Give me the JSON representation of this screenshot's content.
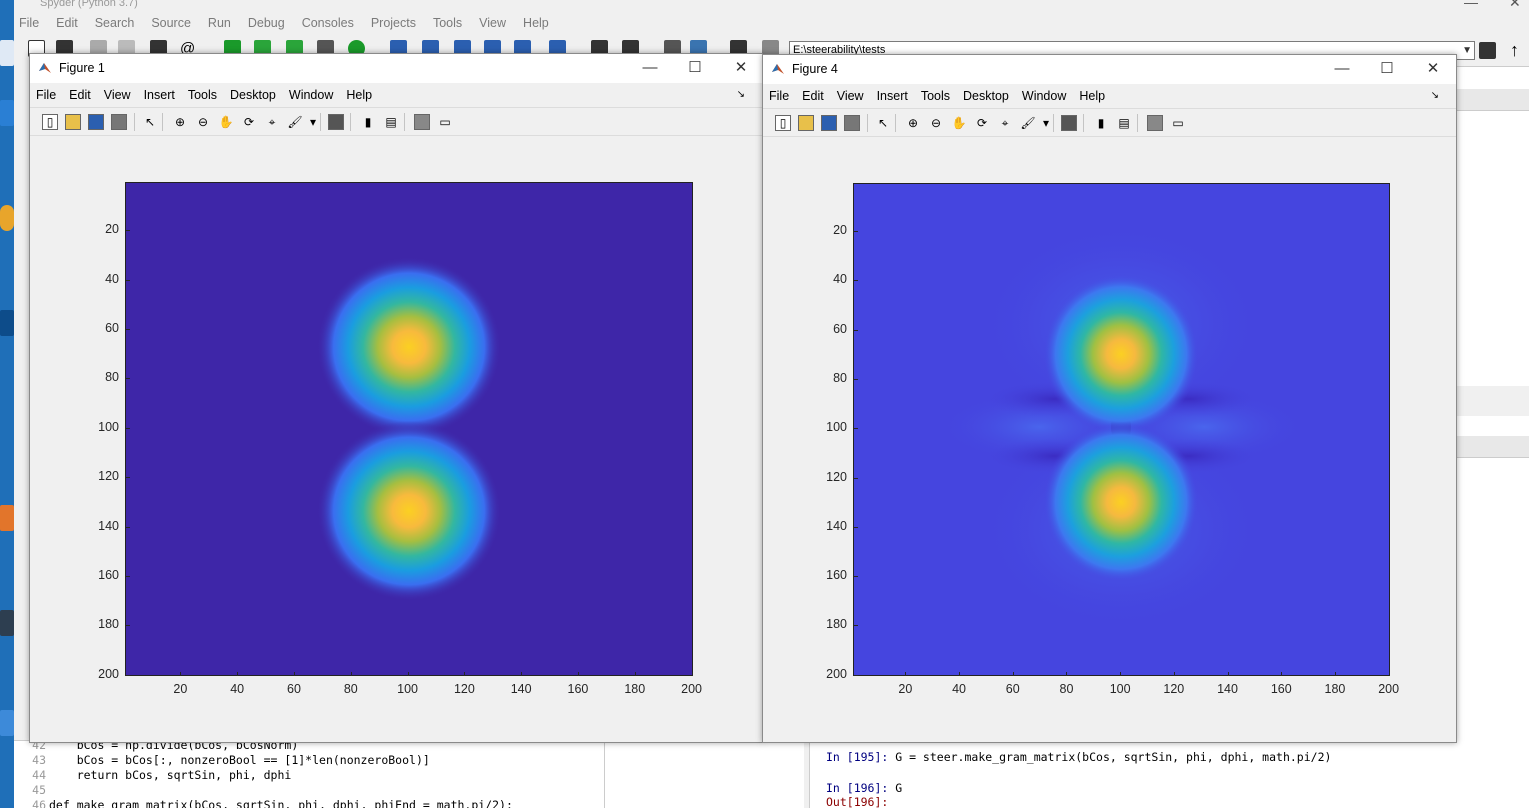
{
  "spyder": {
    "title": "Spyder (Python 3.7)",
    "menu": [
      "File",
      "Edit",
      "Search",
      "Source",
      "Run",
      "Debug",
      "Consoles",
      "Projects",
      "Tools",
      "View",
      "Help"
    ],
    "path": "E:\\steerability\\tests"
  },
  "editor": {
    "lines": [
      {
        "num": "42",
        "code": "    bCos = np.divide(bCos, bCosNorm)"
      },
      {
        "num": "43",
        "code": "    bCos = bCos[:, nonzeroBool == [1]*len(nonzeroBool)]"
      },
      {
        "num": "44",
        "code": "    return bCos, sqrtSin, phi, dphi"
      },
      {
        "num": "45",
        "code": ""
      },
      {
        "num": "46",
        "code": "def make_gram_matrix(bCos, sqrtSin, phi, dphi, phiEnd = math.pi/2):"
      }
    ]
  },
  "console": {
    "line1_prompt": "In [195]:",
    "line1_code": " G = steer.make_gram_matrix(bCos, sqrtSin, phi, dphi, math.pi/2)",
    "line2_prompt": "In [196]:",
    "line2_code": " G",
    "line3_prompt": "Out[196]:"
  },
  "figure1": {
    "title": "Figure 1",
    "menu": [
      "File",
      "Edit",
      "View",
      "Insert",
      "Tools",
      "Desktop",
      "Window",
      "Help"
    ],
    "yticks": [
      "20",
      "40",
      "60",
      "80",
      "100",
      "120",
      "140",
      "160",
      "180",
      "200"
    ],
    "xticks": [
      "20",
      "40",
      "60",
      "80",
      "100",
      "120",
      "140",
      "160",
      "180",
      "200"
    ]
  },
  "figure4": {
    "title": "Figure 4",
    "menu": [
      "File",
      "Edit",
      "View",
      "Insert",
      "Tools",
      "Desktop",
      "Window",
      "Help"
    ],
    "yticks": [
      "20",
      "40",
      "60",
      "80",
      "100",
      "120",
      "140",
      "160",
      "180",
      "200"
    ],
    "xticks": [
      "20",
      "40",
      "60",
      "80",
      "100",
      "120",
      "140",
      "160",
      "180",
      "200"
    ]
  },
  "colors": {
    "parula_low": "#3e26a8",
    "parula_bg4": "#4545df",
    "peak": "#fbd022"
  },
  "icons": {
    "window_minimize": "—",
    "window_maximize": "☐",
    "window_close": "✕"
  }
}
